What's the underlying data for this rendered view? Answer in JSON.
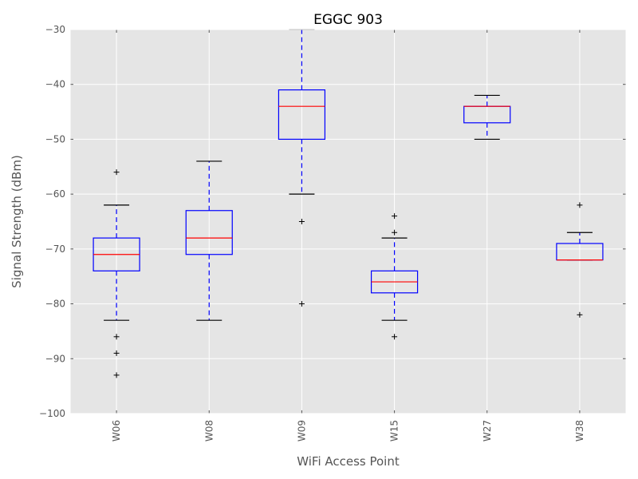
{
  "chart_data": {
    "type": "box",
    "title": "EGGC 903",
    "xlabel": "WiFi Access Point",
    "ylabel": "Signal Strength (dBm)",
    "ylim": [
      -100,
      -30
    ],
    "yticks": [
      -100,
      -90,
      -80,
      -70,
      -60,
      -50,
      -40,
      -30
    ],
    "ytick_labels": [
      "−100",
      "−90",
      "−80",
      "−70",
      "−60",
      "−50",
      "−40",
      "−30"
    ],
    "grid": true,
    "categories": [
      "W06",
      "W08",
      "W09",
      "W15",
      "W27",
      "W38"
    ],
    "boxes": [
      {
        "label": "W06",
        "whisker_low": -83,
        "q1": -74,
        "median": -71,
        "q3": -68,
        "whisker_high": -62,
        "outliers": [
          -56,
          -86,
          -89,
          -93
        ]
      },
      {
        "label": "W08",
        "whisker_low": -83,
        "q1": -71,
        "median": -68,
        "q3": -63,
        "whisker_high": -54,
        "outliers": []
      },
      {
        "label": "W09",
        "whisker_low": -60,
        "q1": -50,
        "median": -44,
        "q3": -41,
        "whisker_high": -30,
        "outliers": [
          -65,
          -80
        ]
      },
      {
        "label": "W15",
        "whisker_low": -83,
        "q1": -78,
        "median": -76,
        "q3": -74,
        "whisker_high": -68,
        "outliers": [
          -64,
          -67,
          -86
        ]
      },
      {
        "label": "W27",
        "whisker_low": -50,
        "q1": -47,
        "median": -44,
        "q3": -44,
        "whisker_high": -42,
        "outliers": []
      },
      {
        "label": "W38",
        "whisker_low": -72,
        "q1": -72,
        "median": -72,
        "q3": -69,
        "whisker_high": -67,
        "outliers": [
          -62,
          -82
        ]
      }
    ],
    "colors": {
      "plot_background": "#e5e5e5",
      "grid": "#ffffff",
      "box": "#0000ff",
      "median": "#ff0000",
      "whisker": "#0000ff",
      "cap": "#000000",
      "outlier": "#000000"
    }
  }
}
